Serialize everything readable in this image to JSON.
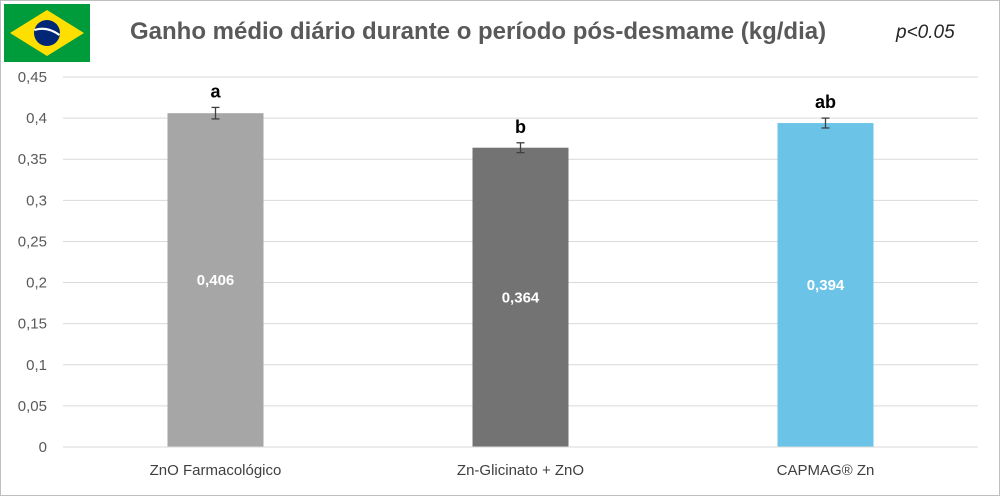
{
  "header": {
    "title": "Ganho médio diário durante o período pós-desmame (kg/dia)",
    "p_value": "p<0.05",
    "flag_icon": "brazil-flag-icon"
  },
  "chart_data": {
    "type": "bar",
    "title": "Ganho médio diário durante o período pós-desmame (kg/dia)",
    "xlabel": "",
    "ylabel": "",
    "ylim": [
      0,
      0.45
    ],
    "yticks": [
      0,
      0.05,
      0.1,
      0.15,
      0.2,
      0.25,
      0.3,
      0.35,
      0.4,
      0.45
    ],
    "ytick_labels": [
      "0",
      "0,05",
      "0,1",
      "0,15",
      "0,2",
      "0,25",
      "0,3",
      "0,35",
      "0,4",
      "0,45"
    ],
    "grid": true,
    "categories": [
      "ZnO Farmacológico",
      "Zn-Glicinato + ZnO",
      "CAPMAG® Zn"
    ],
    "values": [
      0.406,
      0.364,
      0.394
    ],
    "value_labels": [
      "0,406",
      "0,364",
      "0,394"
    ],
    "error": [
      0.007,
      0.006,
      0.006
    ],
    "significance_letters": [
      "a",
      "b",
      "ab"
    ],
    "colors": [
      "#a6a6a6",
      "#737373",
      "#6cc3e8"
    ]
  }
}
